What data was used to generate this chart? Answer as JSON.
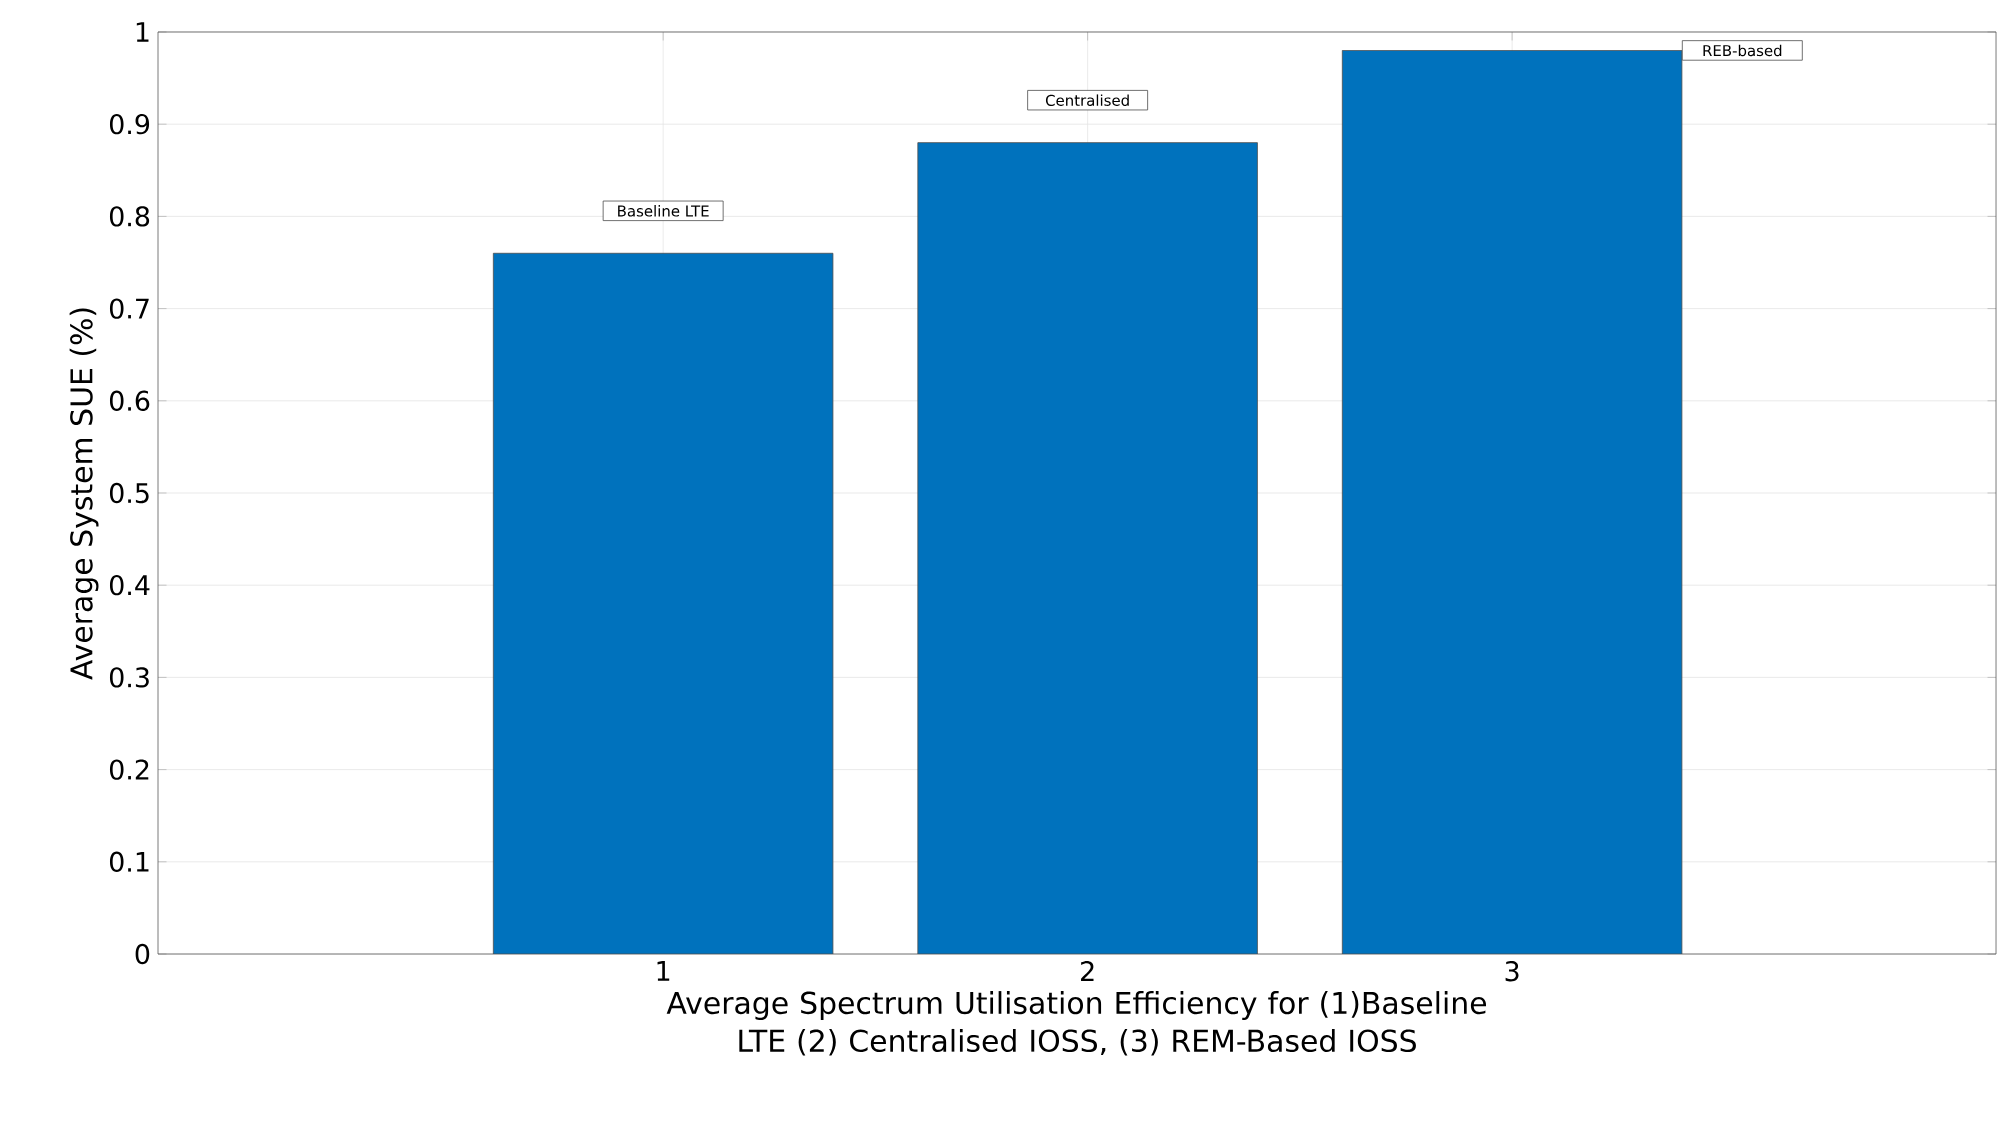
{
  "chart_data": {
    "type": "bar",
    "x": [
      1,
      2,
      3
    ],
    "values": [
      0.76,
      0.88,
      0.98
    ],
    "color": "#0072bd",
    "xlabel": "Average Spectrum Utilisation Efficiency for (1)Baseline LTE (2) Centralised IOSS, (3) REM-Based IOSS",
    "ylabel": "Average System SUE (%)",
    "xlim": [
      -0.19,
      4.14
    ],
    "xticks": [
      1,
      2,
      3
    ],
    "ylim": [
      0,
      1
    ],
    "yticks": [
      0,
      0.1,
      0.2,
      0.3,
      0.4,
      0.5,
      0.6,
      0.7,
      0.8,
      0.9,
      1
    ],
    "grid": true,
    "annotations": [
      {
        "text": "Baseline LTE",
        "x": 1,
        "y": 0.76
      },
      {
        "text": "Centralised",
        "x": 2,
        "y": 0.88
      },
      {
        "text": "REB-based",
        "x": 3.4,
        "y": 0.98
      }
    ]
  }
}
